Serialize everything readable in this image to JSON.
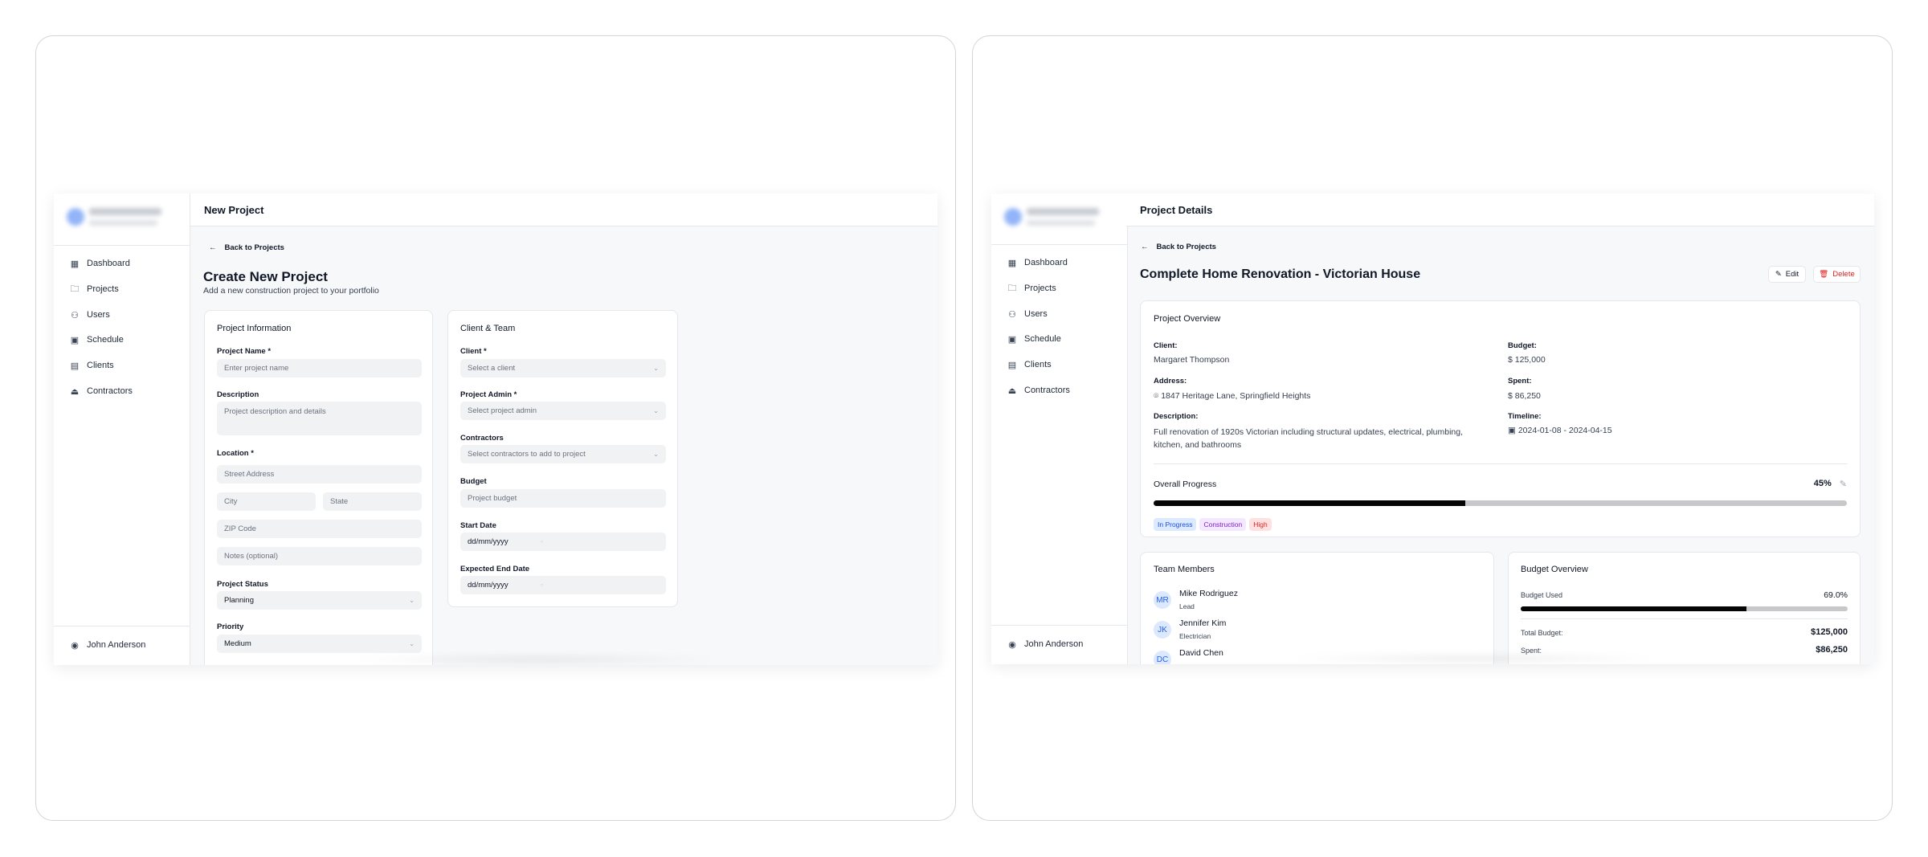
{
  "sidebar": {
    "items": [
      {
        "label": "Dashboard",
        "icon": "dashboard-icon"
      },
      {
        "label": "Projects",
        "icon": "folder-icon"
      },
      {
        "label": "Users",
        "icon": "users-icon"
      },
      {
        "label": "Schedule",
        "icon": "calendar-icon"
      },
      {
        "label": "Clients",
        "icon": "building-icon"
      },
      {
        "label": "Contractors",
        "icon": "hard-hat-icon"
      }
    ],
    "user": "John Anderson"
  },
  "new_project": {
    "header_title": "New Project",
    "back_label": "Back to Projects",
    "title": "Create New Project",
    "subtitle": "Add a new construction project to your portfolio",
    "info_card": {
      "title": "Project Information",
      "name_label": "Project Name *",
      "name_placeholder": "Enter project name",
      "description_label": "Description",
      "description_placeholder": "Project description and details",
      "location_label": "Location *",
      "street_placeholder": "Street Address",
      "city_placeholder": "City",
      "state_placeholder": "State",
      "zip_placeholder": "ZIP Code",
      "notes_placeholder": "Notes (optional)",
      "status_label": "Project Status",
      "status_value": "Planning",
      "priority_label": "Priority",
      "priority_value": "Medium"
    },
    "team_card": {
      "title": "Client & Team",
      "client_label": "Client *",
      "client_placeholder": "Select a client",
      "admin_label": "Project Admin *",
      "admin_placeholder": "Select project admin",
      "contractors_label": "Contractors",
      "contractors_placeholder": "Select contractors to add to project",
      "budget_label": "Budget",
      "budget_placeholder": "Project budget",
      "start_label": "Start Date",
      "start_value": "dd/mm/yyyy",
      "end_label": "Expected End Date",
      "end_value": "dd/mm/yyyy"
    }
  },
  "project_details": {
    "header_title": "Project Details",
    "back_label": "Back to Projects",
    "title": "Complete Home Renovation - Victorian House",
    "edit_label": "Edit",
    "delete_label": "Delete",
    "overview": {
      "title": "Project Overview",
      "client_label": "Client:",
      "client": "Margaret Thompson",
      "address_label": "Address:",
      "address": "1847 Heritage Lane, Springfield Heights",
      "description_label": "Description:",
      "description": "Full renovation of 1920s Victorian including structural updates, electrical, plumbing, kitchen, and bathrooms",
      "budget_label": "Budget:",
      "budget": "$ 125,000",
      "spent_label": "Spent:",
      "spent": "$ 86,250",
      "timeline_label": "Timeline:",
      "timeline": "2024-01-08 - 2024-04-15",
      "progress_label": "Overall Progress",
      "progress_text": "45%",
      "progress": 45,
      "tags": [
        {
          "label": "In Progress",
          "bg": "#dbeafe",
          "color": "#1d4ed8"
        },
        {
          "label": "Construction",
          "bg": "#f3e8ff",
          "color": "#7e22ce"
        },
        {
          "label": "High",
          "bg": "#fee2e2",
          "color": "#dc2626"
        }
      ]
    },
    "team": {
      "title": "Team Members",
      "members": [
        {
          "initials": "MR",
          "name": "Mike Rodriguez",
          "role": "Lead"
        },
        {
          "initials": "JK",
          "name": "Jennifer Kim",
          "role": "Electrician"
        },
        {
          "initials": "DC",
          "name": "David Chen",
          "role": ""
        }
      ]
    },
    "budget": {
      "title": "Budget Overview",
      "used_label": "Budget Used",
      "used_text": "69.0%",
      "used": 69,
      "total_label": "Total Budget:",
      "total": "$125,000",
      "spent_label": "Spent:",
      "spent": "$86,250"
    }
  }
}
